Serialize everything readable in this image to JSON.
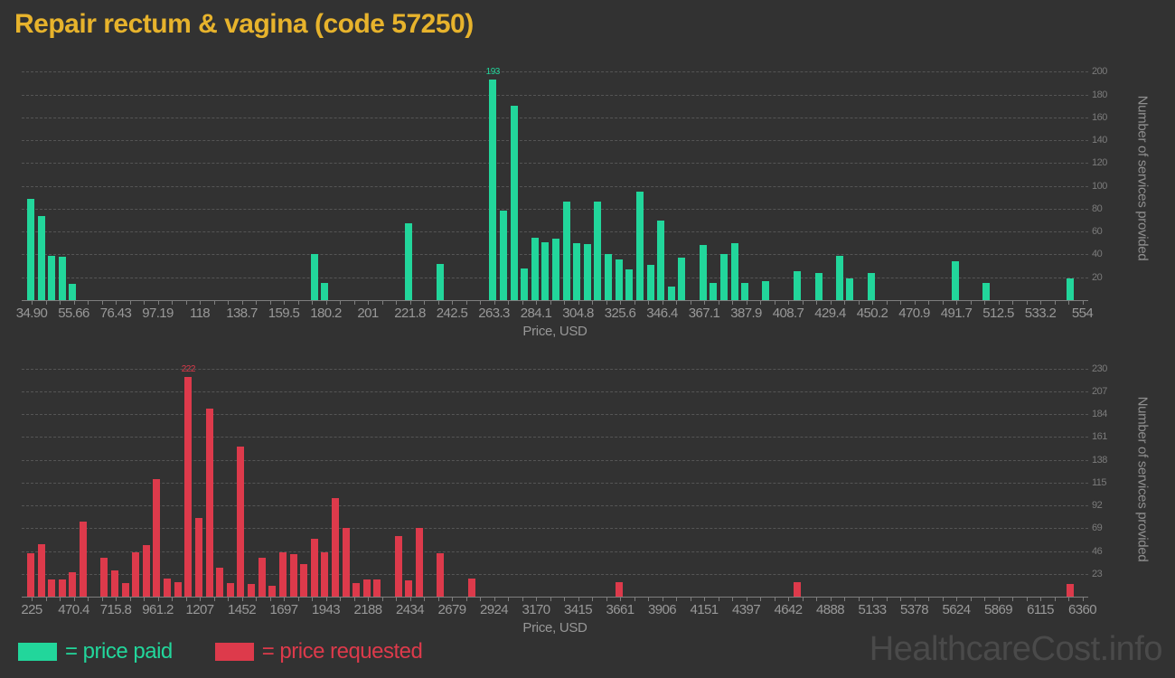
{
  "title": "Repair rectum & vagina (code 57250)",
  "watermark": "HealthcareCost.info",
  "legend": {
    "paid": {
      "label": "= price paid",
      "color": "#22d69b"
    },
    "requested": {
      "label": "= price requested",
      "color": "#dd3a4b"
    }
  },
  "chart_data": [
    {
      "type": "bar",
      "name": "price paid",
      "color": "#22d69b",
      "title": "Repair rectum & vagina (code 57250)",
      "xlabel": "Price, USD",
      "ylabel": "Number of services provided",
      "x_tick_labels": [
        "34.90",
        "55.66",
        "76.43",
        "97.19",
        "118",
        "138.7",
        "159.5",
        "180.2",
        "201",
        "221.8",
        "242.5",
        "263.3",
        "284.1",
        "304.8",
        "325.6",
        "346.4",
        "367.1",
        "387.9",
        "408.7",
        "429.4",
        "450.2",
        "470.9",
        "491.7",
        "512.5",
        "533.2",
        "554"
      ],
      "x_label_bin_step": 4,
      "y_tick_values": [
        20,
        40,
        60,
        80,
        100,
        120,
        140,
        160,
        180,
        200
      ],
      "ylim": [
        0,
        214
      ],
      "grid": true,
      "legend_position": "bottom-left",
      "peak_label": "193",
      "peak_bin": 44,
      "bars_format": "[bin_index, services_count]",
      "bars": [
        [
          0,
          89
        ],
        [
          1,
          74
        ],
        [
          2,
          39
        ],
        [
          3,
          38
        ],
        [
          4,
          14
        ],
        [
          27,
          40
        ],
        [
          28,
          15
        ],
        [
          36,
          67
        ],
        [
          39,
          32
        ],
        [
          44,
          193
        ],
        [
          45,
          78
        ],
        [
          46,
          170
        ],
        [
          47,
          28
        ],
        [
          48,
          55
        ],
        [
          49,
          51
        ],
        [
          50,
          54
        ],
        [
          51,
          86
        ],
        [
          52,
          50
        ],
        [
          53,
          49
        ],
        [
          54,
          86
        ],
        [
          55,
          40
        ],
        [
          56,
          36
        ],
        [
          57,
          27
        ],
        [
          58,
          95
        ],
        [
          59,
          31
        ],
        [
          60,
          70
        ],
        [
          61,
          12
        ],
        [
          62,
          37
        ],
        [
          64,
          48
        ],
        [
          65,
          15
        ],
        [
          66,
          40
        ],
        [
          67,
          50
        ],
        [
          68,
          15
        ],
        [
          70,
          17
        ],
        [
          73,
          25
        ],
        [
          75,
          24
        ],
        [
          77,
          39
        ],
        [
          78,
          19
        ],
        [
          80,
          24
        ],
        [
          88,
          34
        ],
        [
          91,
          15
        ],
        [
          99,
          19
        ]
      ]
    },
    {
      "type": "bar",
      "name": "price requested",
      "color": "#dd3a4b",
      "title": "",
      "xlabel": "Price, USD",
      "ylabel": "Number of services provided",
      "x_tick_labels": [
        "225",
        "470.4",
        "715.8",
        "961.2",
        "1207",
        "1452",
        "1697",
        "1943",
        "2188",
        "2434",
        "2679",
        "2924",
        "3170",
        "3415",
        "3661",
        "3906",
        "4151",
        "4397",
        "4642",
        "4888",
        "5133",
        "5378",
        "5624",
        "5869",
        "6115",
        "6360"
      ],
      "x_label_bin_step": 4,
      "y_tick_values": [
        23,
        46,
        69,
        92,
        115,
        138,
        161,
        184,
        207,
        230
      ],
      "ylim": [
        0,
        239
      ],
      "grid": true,
      "legend_position": "bottom-left",
      "peak_label": "222",
      "peak_bin": 15,
      "bars_format": "[bin_index, services_count]",
      "bars": [
        [
          0,
          44
        ],
        [
          1,
          53
        ],
        [
          2,
          17
        ],
        [
          3,
          17
        ],
        [
          4,
          25
        ],
        [
          5,
          76
        ],
        [
          7,
          39
        ],
        [
          8,
          26
        ],
        [
          9,
          14
        ],
        [
          10,
          45
        ],
        [
          11,
          52
        ],
        [
          12,
          119
        ],
        [
          13,
          18
        ],
        [
          14,
          15
        ],
        [
          15,
          222
        ],
        [
          16,
          79
        ],
        [
          17,
          190
        ],
        [
          18,
          29
        ],
        [
          19,
          14
        ],
        [
          20,
          151
        ],
        [
          21,
          13
        ],
        [
          22,
          39
        ],
        [
          23,
          11
        ],
        [
          24,
          45
        ],
        [
          25,
          43
        ],
        [
          26,
          33
        ],
        [
          27,
          58
        ],
        [
          28,
          45
        ],
        [
          29,
          99
        ],
        [
          30,
          69
        ],
        [
          31,
          14
        ],
        [
          32,
          17
        ],
        [
          33,
          17
        ],
        [
          35,
          61
        ],
        [
          36,
          16
        ],
        [
          37,
          69
        ],
        [
          39,
          44
        ],
        [
          42,
          18
        ],
        [
          56,
          15
        ],
        [
          73,
          15
        ],
        [
          99,
          13
        ]
      ]
    }
  ]
}
